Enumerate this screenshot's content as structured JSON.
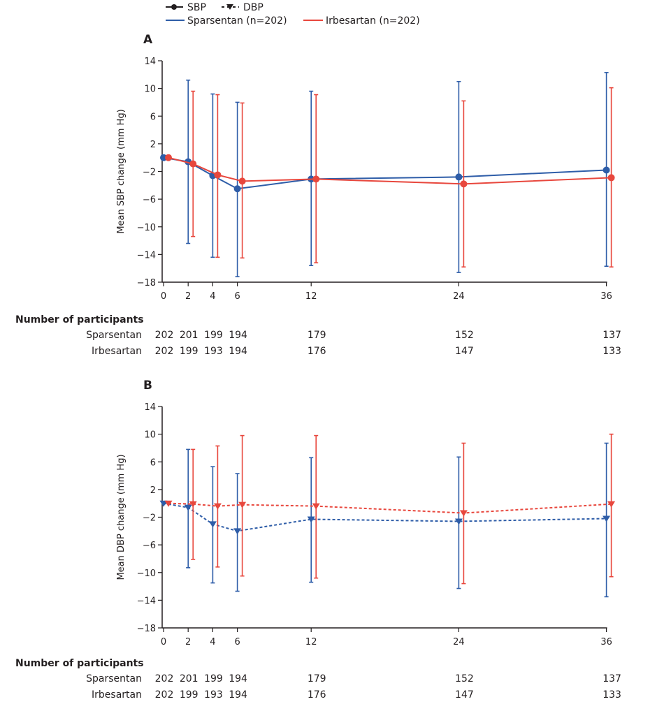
{
  "legend": {
    "sbp_label": "SBP",
    "dbp_label": "DBP",
    "sparsentan_label": "Sparsentan (n=202)",
    "irbesartan_label": "Irbesartan (n=202)"
  },
  "colors": {
    "sparsentan": "#2e5da8",
    "irbesartan": "#e8473d",
    "axis": "#231f20"
  },
  "chart_data": [
    {
      "panel": "A",
      "type": "line",
      "marker": "circle",
      "line_style": "solid",
      "ylabel": "Mean SBP change (mm Hg)",
      "xlabel": "",
      "ylim": [
        -18,
        14
      ],
      "yticks": [
        14,
        10,
        6,
        2,
        -2,
        -6,
        -10,
        -14,
        -18
      ],
      "x": [
        0,
        2,
        4,
        6,
        12,
        24,
        36
      ],
      "grid": false,
      "series": [
        {
          "name": "Sparsentan",
          "values": [
            0,
            -0.6,
            -2.6,
            -4.5,
            -3.1,
            -2.8,
            -1.8
          ],
          "upper": [
            null,
            11.2,
            9.2,
            8.0,
            9.6,
            11.0,
            12.3
          ],
          "lower": [
            null,
            -12.4,
            -14.4,
            -17.2,
            -15.6,
            -16.6,
            -15.7
          ]
        },
        {
          "name": "Irbesartan",
          "values": [
            0,
            -0.9,
            -2.5,
            -3.4,
            -3.1,
            -3.8,
            -2.9
          ],
          "upper": [
            null,
            9.6,
            9.1,
            7.9,
            9.1,
            8.2,
            10.1
          ],
          "lower": [
            null,
            -11.4,
            -14.4,
            -14.5,
            -15.2,
            -15.8,
            -15.8
          ]
        }
      ],
      "participants": {
        "title": "Number of participants",
        "rows": [
          {
            "label": "Sparsentan",
            "counts": [
              "202",
              "201",
              "199",
              "194",
              "179",
              "152",
              "137"
            ]
          },
          {
            "label": "Irbesartan",
            "counts": [
              "202",
              "199",
              "193",
              "194",
              "176",
              "147",
              "133"
            ]
          }
        ]
      }
    },
    {
      "panel": "B",
      "type": "line",
      "marker": "triangle-down",
      "line_style": "dashed",
      "ylabel": "Mean DBP change (mm Hg)",
      "xlabel": "",
      "ylim": [
        -18,
        14
      ],
      "yticks": [
        14,
        10,
        6,
        2,
        -2,
        -6,
        -10,
        -14,
        -18
      ],
      "x": [
        0,
        2,
        4,
        6,
        12,
        24,
        36
      ],
      "grid": false,
      "series": [
        {
          "name": "Sparsentan",
          "values": [
            0,
            -0.6,
            -3.0,
            -4.0,
            -2.3,
            -2.6,
            -2.2
          ],
          "upper": [
            null,
            7.8,
            5.3,
            4.3,
            6.6,
            6.7,
            8.7
          ],
          "lower": [
            null,
            -9.3,
            -11.5,
            -12.7,
            -11.4,
            -12.3,
            -13.5
          ]
        },
        {
          "name": "Irbesartan",
          "values": [
            0,
            -0.1,
            -0.4,
            -0.2,
            -0.4,
            -1.4,
            -0.1
          ],
          "upper": [
            null,
            7.8,
            8.3,
            9.8,
            9.8,
            8.7,
            10.0
          ],
          "lower": [
            null,
            -8.1,
            -9.2,
            -10.5,
            -10.8,
            -11.6,
            -10.6
          ]
        }
      ],
      "participants": {
        "title": "Number of participants",
        "rows": [
          {
            "label": "Sparsentan",
            "counts": [
              "202",
              "201",
              "199",
              "194",
              "179",
              "152",
              "137"
            ]
          },
          {
            "label": "Irbesartan",
            "counts": [
              "202",
              "199",
              "193",
              "194",
              "176",
              "147",
              "133"
            ]
          }
        ]
      }
    }
  ]
}
